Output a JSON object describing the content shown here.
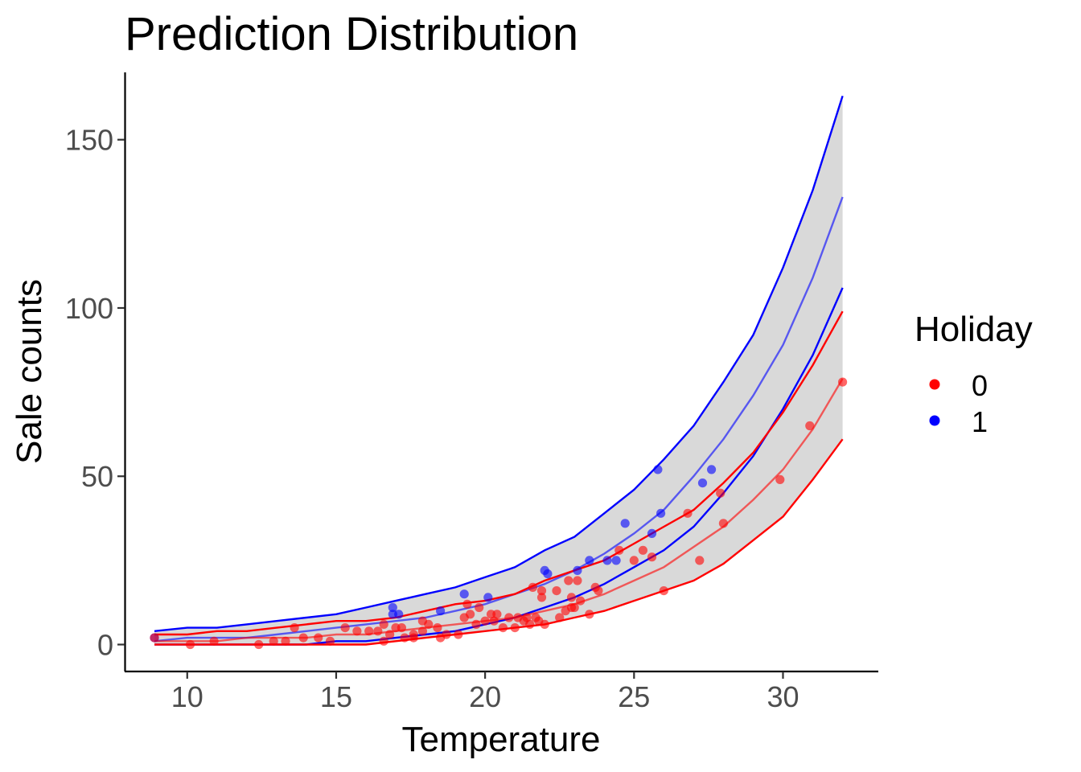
{
  "chart_data": {
    "type": "scatter",
    "title": "Prediction Distribution",
    "xlabel": "Temperature",
    "ylabel": "Sale counts",
    "xlim": [
      7.9,
      33.2
    ],
    "ylim": [
      -8,
      170
    ],
    "xticks": [
      10,
      15,
      20,
      25,
      30
    ],
    "yticks": [
      0,
      50,
      100,
      150
    ],
    "grid": false,
    "legend": {
      "title": "Holiday",
      "position": "right",
      "entries": [
        {
          "label": "0",
          "color": "#ff0000"
        },
        {
          "label": "1",
          "color": "#0000ff"
        }
      ]
    },
    "band": {
      "color": "#d9d9d9",
      "x": [
        8.9,
        10,
        11,
        12,
        13,
        14,
        15,
        16,
        17,
        18,
        19,
        20,
        21,
        22,
        23,
        24,
        25,
        26,
        27,
        28,
        29,
        30,
        31,
        32
      ],
      "lower": [
        0,
        0,
        0,
        0,
        0,
        0,
        0,
        0,
        1,
        2,
        3,
        4,
        5,
        6,
        8,
        10,
        13,
        16,
        19,
        24,
        31,
        38,
        49,
        61
      ],
      "upper": [
        4,
        5,
        5,
        6,
        7,
        8,
        9,
        11,
        13,
        15,
        17,
        20,
        23,
        28,
        32,
        39,
        46,
        55,
        65,
        78,
        92,
        112,
        135,
        163
      ]
    },
    "series": [
      {
        "name": "0",
        "color": "#ff0000",
        "x": [
          8.9,
          10,
          11,
          12,
          13,
          14,
          15,
          16,
          17,
          18,
          19,
          20,
          21,
          22,
          23,
          24,
          25,
          26,
          27,
          28,
          29,
          30,
          31,
          32
        ],
        "lower": [
          0,
          0,
          0,
          0,
          0,
          0,
          0,
          0,
          1,
          2,
          3,
          4,
          5,
          6,
          8,
          10,
          13,
          16,
          19,
          24,
          31,
          38,
          49,
          61
        ],
        "mid": [
          1,
          1,
          1,
          2,
          2,
          2,
          3,
          3,
          4,
          5,
          6,
          7,
          8,
          10,
          12,
          15,
          19,
          23,
          29,
          35,
          43,
          52,
          64,
          79
        ],
        "upper": [
          3,
          3,
          4,
          4,
          5,
          6,
          7,
          7,
          8,
          10,
          12,
          13,
          15,
          19,
          22,
          25,
          30,
          35,
          40,
          48,
          57,
          69,
          83,
          99
        ],
        "points": [
          [
            8.9,
            2
          ],
          [
            10.1,
            0
          ],
          [
            10.9,
            1
          ],
          [
            12.4,
            0
          ],
          [
            12.9,
            1
          ],
          [
            13.3,
            1
          ],
          [
            13.6,
            5
          ],
          [
            13.9,
            2
          ],
          [
            14.4,
            2
          ],
          [
            14.8,
            1
          ],
          [
            15.3,
            5
          ],
          [
            15.7,
            4
          ],
          [
            16.1,
            4
          ],
          [
            16.4,
            4
          ],
          [
            16.6,
            6
          ],
          [
            16.6,
            1
          ],
          [
            16.8,
            3
          ],
          [
            17.0,
            5
          ],
          [
            17.2,
            5
          ],
          [
            17.3,
            2
          ],
          [
            17.6,
            2
          ],
          [
            17.6,
            3
          ],
          [
            17.9,
            7
          ],
          [
            17.9,
            4
          ],
          [
            18.1,
            6
          ],
          [
            18.4,
            5
          ],
          [
            18.5,
            2
          ],
          [
            18.7,
            3
          ],
          [
            19.1,
            3
          ],
          [
            19.3,
            8
          ],
          [
            19.4,
            12
          ],
          [
            19.5,
            9
          ],
          [
            19.7,
            6
          ],
          [
            19.8,
            11
          ],
          [
            20.0,
            7
          ],
          [
            20.2,
            9
          ],
          [
            20.3,
            7
          ],
          [
            20.4,
            9
          ],
          [
            20.6,
            5
          ],
          [
            20.8,
            8
          ],
          [
            21.0,
            5
          ],
          [
            21.1,
            8
          ],
          [
            21.3,
            7
          ],
          [
            21.4,
            8
          ],
          [
            21.5,
            6
          ],
          [
            21.6,
            17
          ],
          [
            21.7,
            8
          ],
          [
            21.8,
            7
          ],
          [
            21.9,
            16
          ],
          [
            21.9,
            14
          ],
          [
            22.0,
            6
          ],
          [
            22.4,
            16
          ],
          [
            22.5,
            8
          ],
          [
            22.7,
            10
          ],
          [
            22.8,
            19
          ],
          [
            22.9,
            14
          ],
          [
            22.9,
            11
          ],
          [
            23.0,
            11
          ],
          [
            23.1,
            19
          ],
          [
            23.2,
            13
          ],
          [
            23.5,
            9
          ],
          [
            23.7,
            17
          ],
          [
            23.8,
            16
          ],
          [
            24.5,
            28
          ],
          [
            25.0,
            25
          ],
          [
            25.3,
            28
          ],
          [
            25.6,
            26
          ],
          [
            26.0,
            16
          ],
          [
            26.8,
            39
          ],
          [
            27.2,
            25
          ],
          [
            27.9,
            45
          ],
          [
            28.0,
            36
          ],
          [
            29.9,
            49
          ],
          [
            30.9,
            65
          ],
          [
            32.0,
            78
          ]
        ]
      },
      {
        "name": "1",
        "color": "#0000ff",
        "x": [
          8.9,
          10,
          11,
          12,
          13,
          14,
          15,
          16,
          17,
          18,
          19,
          20,
          21,
          22,
          23,
          24,
          25,
          26,
          27,
          28,
          29,
          30,
          31,
          32
        ],
        "lower": [
          0,
          0,
          0,
          0,
          0,
          0,
          1,
          1,
          2,
          3,
          4,
          6,
          8,
          11,
          14,
          18,
          23,
          28,
          35,
          45,
          56,
          70,
          86,
          106
        ],
        "mid": [
          1,
          2,
          2,
          2,
          3,
          4,
          5,
          6,
          7,
          8,
          10,
          12,
          15,
          18,
          22,
          27,
          33,
          40,
          50,
          61,
          74,
          89,
          109,
          133
        ],
        "upper": [
          4,
          5,
          5,
          6,
          7,
          8,
          9,
          11,
          13,
          15,
          17,
          20,
          23,
          28,
          32,
          39,
          46,
          55,
          65,
          78,
          92,
          112,
          135,
          163
        ],
        "points": [
          [
            8.9,
            2
          ],
          [
            16.9,
            11
          ],
          [
            16.9,
            9
          ],
          [
            17.1,
            9
          ],
          [
            18.5,
            10
          ],
          [
            19.3,
            15
          ],
          [
            20.1,
            14
          ],
          [
            22.0,
            22
          ],
          [
            22.1,
            21
          ],
          [
            23.1,
            22
          ],
          [
            23.5,
            25
          ],
          [
            24.1,
            25
          ],
          [
            24.4,
            25
          ],
          [
            24.7,
            36
          ],
          [
            25.6,
            33
          ],
          [
            25.8,
            52
          ],
          [
            25.9,
            39
          ],
          [
            27.3,
            48
          ],
          [
            27.6,
            52
          ]
        ]
      }
    ]
  }
}
